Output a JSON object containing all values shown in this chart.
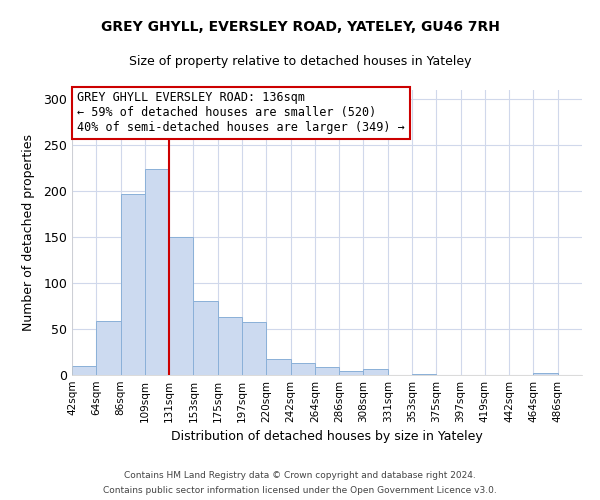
{
  "title": "GREY GHYLL, EVERSLEY ROAD, YATELEY, GU46 7RH",
  "subtitle": "Size of property relative to detached houses in Yateley",
  "xlabel": "Distribution of detached houses by size in Yateley",
  "ylabel": "Number of detached properties",
  "bar_labels": [
    "42sqm",
    "64sqm",
    "86sqm",
    "109sqm",
    "131sqm",
    "153sqm",
    "175sqm",
    "197sqm",
    "220sqm",
    "242sqm",
    "264sqm",
    "286sqm",
    "308sqm",
    "331sqm",
    "353sqm",
    "375sqm",
    "397sqm",
    "419sqm",
    "442sqm",
    "464sqm",
    "486sqm"
  ],
  "bar_values": [
    10,
    59,
    197,
    224,
    150,
    80,
    63,
    58,
    17,
    13,
    9,
    4,
    6,
    0,
    1,
    0,
    0,
    0,
    0,
    2,
    0
  ],
  "bar_color": "#ccdaf0",
  "bar_edgecolor": "#8ab0d8",
  "vline_x": 4,
  "vline_color": "#cc0000",
  "ylim": [
    0,
    310
  ],
  "yticks": [
    0,
    50,
    100,
    150,
    200,
    250,
    300
  ],
  "annotation_title": "GREY GHYLL EVERSLEY ROAD: 136sqm",
  "annotation_line1": "← 59% of detached houses are smaller (520)",
  "annotation_line2": "40% of semi-detached houses are larger (349) →",
  "annotation_box_color": "#cc0000",
  "footer_line1": "Contains HM Land Registry data © Crown copyright and database right 2024.",
  "footer_line2": "Contains public sector information licensed under the Open Government Licence v3.0.",
  "background_color": "#ffffff",
  "grid_color": "#d0d8eb"
}
